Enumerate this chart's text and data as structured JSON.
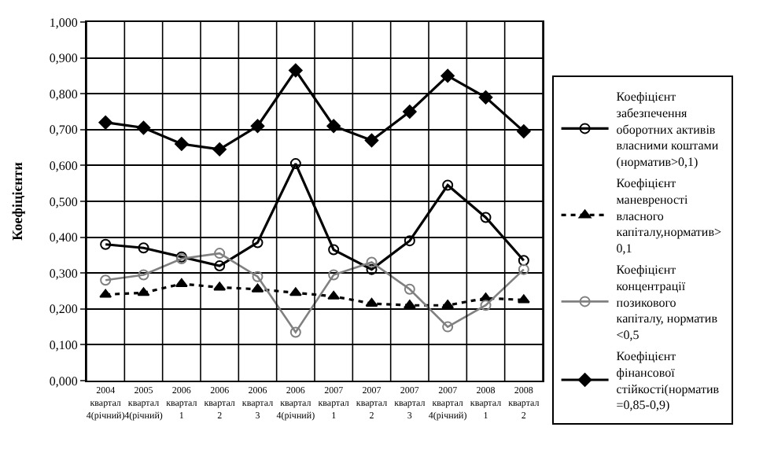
{
  "chart_data": {
    "type": "line",
    "ylabel": "Коефіцієнти",
    "categories": [
      "2004 квартал 4(річний)",
      "2005 квартал 4(річний)",
      "2006 квартал 1",
      "2006 квартал 2",
      "2006 квартал 3",
      "2006 квартал 4(річний)",
      "2007 квартал 1",
      "2007 квартал 2",
      "2007 квартал 3",
      "2007 квартал 4(річний)",
      "2008 квартал 1",
      "2008 квартал 2"
    ],
    "series": [
      {
        "name": "Коефіцієнт забезпечення оборотних активів власними коштами (норматив>0,1)",
        "color": "#000000",
        "marker": "circle",
        "line_style": "solid",
        "values": [
          0.38,
          0.37,
          0.345,
          0.32,
          0.385,
          0.605,
          0.365,
          0.31,
          0.39,
          0.545,
          0.455,
          0.335
        ]
      },
      {
        "name": "Коефіцієнт маневреності власного капіталу,норматив> 0,1",
        "color": "#000000",
        "marker": "triangle",
        "line_style": "dotted",
        "values": [
          0.24,
          0.245,
          0.27,
          0.26,
          0.255,
          0.245,
          0.235,
          0.215,
          0.21,
          0.21,
          0.23,
          0.225
        ]
      },
      {
        "name": "Коефіцієнт концентрації позикового капіталу, норматив <0,5",
        "color": "#808080",
        "marker": "circle",
        "line_style": "solid",
        "values": [
          0.28,
          0.295,
          0.34,
          0.355,
          0.29,
          0.135,
          0.295,
          0.33,
          0.255,
          0.15,
          0.21,
          0.31
        ]
      },
      {
        "name": "Коефіцієнт фінансової стійкості(норматив =0,85-0,9)",
        "color": "#000000",
        "marker": "diamond",
        "line_style": "solid",
        "values": [
          0.72,
          0.705,
          0.66,
          0.645,
          0.71,
          0.865,
          0.71,
          0.67,
          0.75,
          0.85,
          0.79,
          0.695
        ]
      }
    ],
    "ylim": [
      0,
      1
    ],
    "yticks": [
      {
        "value": 0,
        "label": "0,000"
      },
      {
        "value": 0.1,
        "label": "0,100"
      },
      {
        "value": 0.2,
        "label": "0,200"
      },
      {
        "value": 0.3,
        "label": "0,300"
      },
      {
        "value": 0.4,
        "label": "0,400"
      },
      {
        "value": 0.5,
        "label": "0,500"
      },
      {
        "value": 0.6,
        "label": "0,600"
      },
      {
        "value": 0.7,
        "label": "0,700"
      },
      {
        "value": 0.8,
        "label": "0,800"
      },
      {
        "value": 0.9,
        "label": "0,900"
      },
      {
        "value": 1,
        "label": "1,000"
      }
    ],
    "grid": true,
    "legend": "right"
  }
}
